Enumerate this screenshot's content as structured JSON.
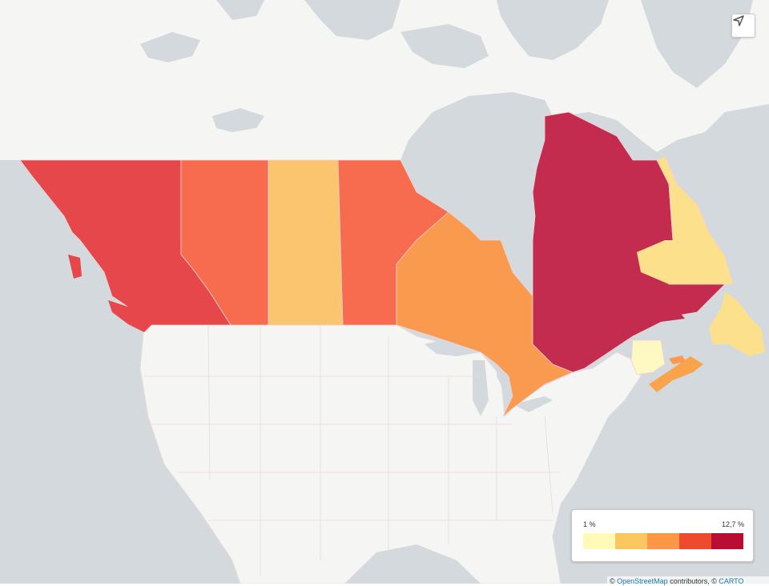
{
  "map": {
    "basemap_colors": {
      "water": "#d4d9dd",
      "land": "#f5f5f3",
      "borders": "#e3d6d6"
    },
    "regions": [
      {
        "id": "british-columbia",
        "color": "#e5474a"
      },
      {
        "id": "alberta",
        "color": "#f76c4e"
      },
      {
        "id": "saskatchewan",
        "color": "#fbc46f"
      },
      {
        "id": "manitoba",
        "color": "#f76c4e"
      },
      {
        "id": "ontario",
        "color": "#f99a4e"
      },
      {
        "id": "quebec",
        "color": "#c42c4f"
      },
      {
        "id": "newfoundland-and-labrador",
        "color": "#fde08c"
      },
      {
        "id": "new-brunswick",
        "color": "#fef8c3"
      },
      {
        "id": "nova-scotia",
        "color": "#f9a44a"
      },
      {
        "id": "prince-edward-island",
        "color": "#f99a4e"
      }
    ]
  },
  "controls": {
    "locate_icon": "navigation-arrow-icon"
  },
  "legend": {
    "min_label": "1 %",
    "max_label": "12,7 %",
    "colors": [
      "#fffbb6",
      "#fcc661",
      "#fb9747",
      "#f04a2e",
      "#b90d34"
    ]
  },
  "attribution": {
    "prefix": "© ",
    "osm_link": "OpenStreetMap",
    "middle": " contributors, © ",
    "carto_link": "CARTO"
  }
}
